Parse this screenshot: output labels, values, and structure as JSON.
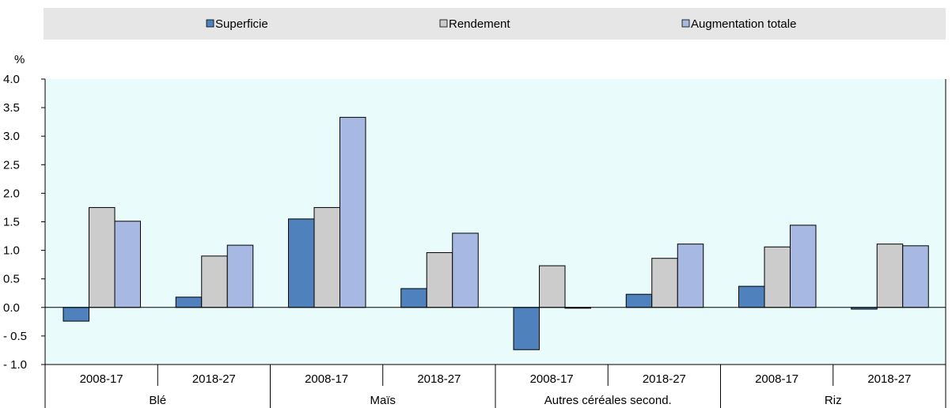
{
  "chart_data": {
    "type": "bar",
    "ylabel": "%",
    "ylim": [
      -1.0,
      4.0
    ],
    "ytick_step": 0.5,
    "yticks": [
      "4.0",
      "3.5",
      "3.0",
      "2.5",
      "2.0",
      "1.5",
      "1.0",
      "0.5",
      "0.0",
      "- 0.5",
      "- 1.0"
    ],
    "grid": false,
    "legend_position": "top",
    "plot_background": "#EAFBFB",
    "legend_background": "#E6E6E6",
    "groups": [
      {
        "label": "Blé",
        "periods": [
          "2008-17",
          "2018-27"
        ]
      },
      {
        "label": "Maïs",
        "periods": [
          "2008-17",
          "2018-27"
        ]
      },
      {
        "label": "Autres céréales second.",
        "periods": [
          "2008-17",
          "2018-27"
        ]
      },
      {
        "label": "Riz",
        "periods": [
          "2008-17",
          "2018-27"
        ]
      }
    ],
    "series": [
      {
        "name": "Superficie",
        "color": "#4F81BD",
        "values": [
          -0.24,
          0.18,
          1.55,
          0.33,
          -0.74,
          0.23,
          0.37,
          -0.03
        ]
      },
      {
        "name": "Rendement",
        "color": "#CCCCCC",
        "values": [
          1.75,
          0.9,
          1.75,
          0.96,
          0.73,
          0.86,
          1.06,
          1.11
        ]
      },
      {
        "name": "Augmentation totale",
        "color": "#A7B9E3",
        "values": [
          1.51,
          1.09,
          3.33,
          1.3,
          -0.01,
          1.11,
          1.44,
          1.08
        ]
      }
    ]
  }
}
